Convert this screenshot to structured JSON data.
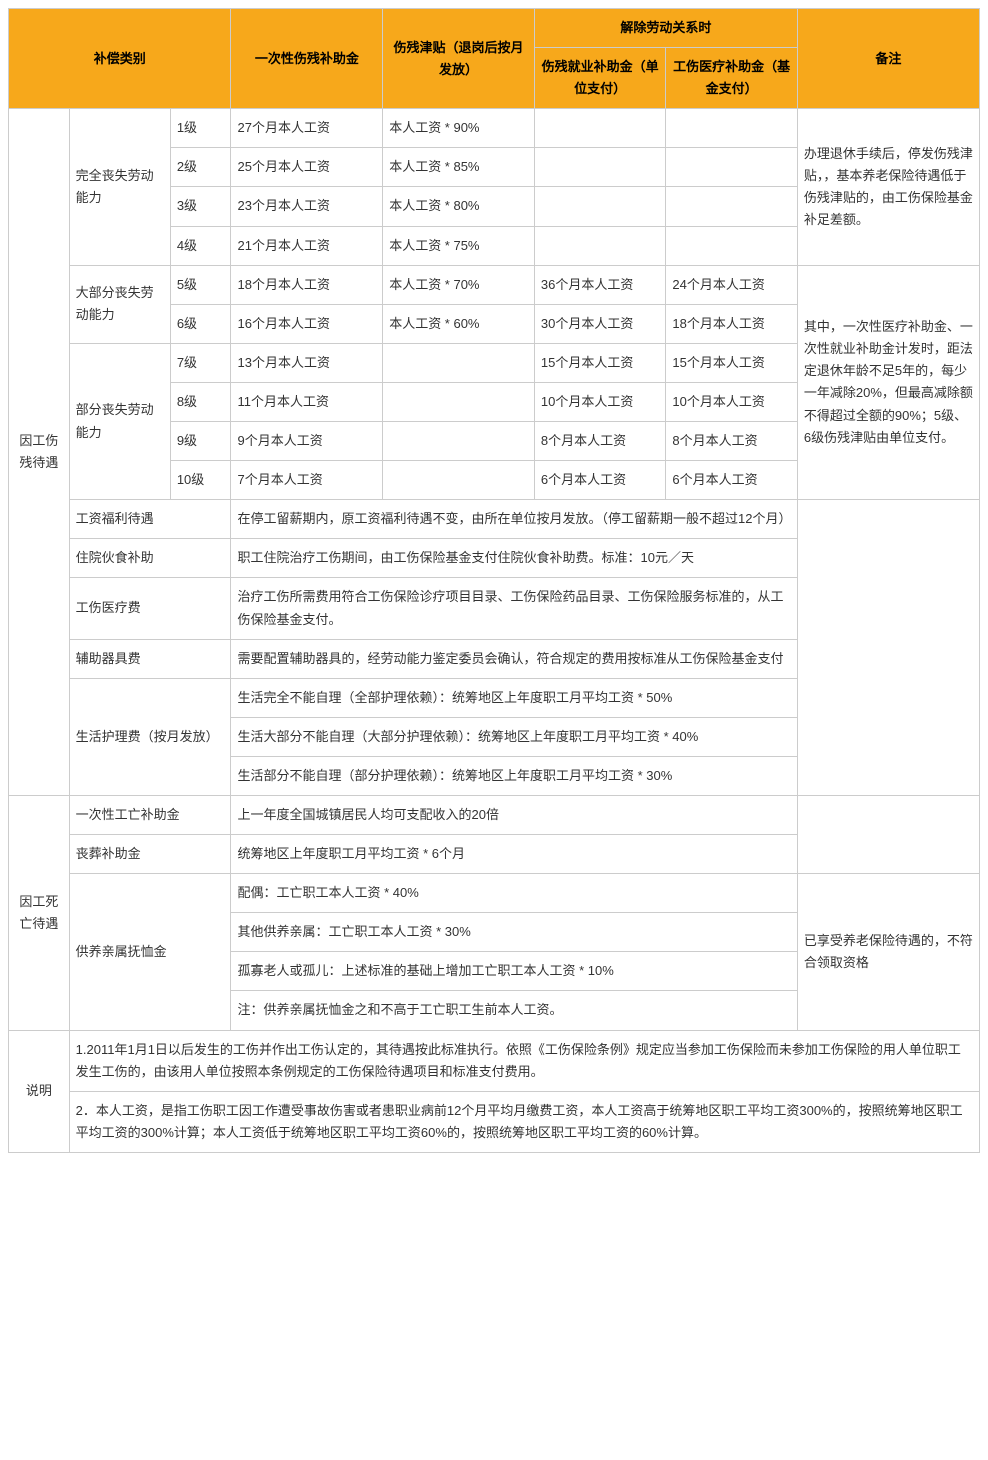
{
  "header": {
    "compType": "补偿类别",
    "lumpSum": "一次性伤残补助金",
    "allowance": "伤残津贴（退岗后按月发放）",
    "termination": "解除劳动关系时",
    "terminationEmploy": "伤残就业补助金（单位支付）",
    "terminationMedical": "工伤医疗补助金（基金支付）",
    "remark": "备注"
  },
  "cat1": "因工伤残待遇",
  "cat1a": "完全丧失劳动能力",
  "cat1b": "大部分丧失劳动能力",
  "cat1c": "部分丧失劳动能力",
  "l1": {
    "lv": "1级",
    "a": "27个月本人工资",
    "b": "本人工资 * 90%"
  },
  "l2": {
    "lv": "2级",
    "a": "25个月本人工资",
    "b": "本人工资 * 85%"
  },
  "l3": {
    "lv": "3级",
    "a": "23个月本人工资",
    "b": "本人工资 * 80%"
  },
  "l4": {
    "lv": "4级",
    "a": "21个月本人工资",
    "b": "本人工资 * 75%"
  },
  "l5": {
    "lv": "5级",
    "a": "18个月本人工资",
    "b": "本人工资 * 70%",
    "c": "36个月本人工资",
    "d": "24个月本人工资"
  },
  "l6": {
    "lv": "6级",
    "a": "16个月本人工资",
    "b": "本人工资 * 60%",
    "c": "30个月本人工资",
    "d": "18个月本人工资"
  },
  "l7": {
    "lv": "7级",
    "a": "13个月本人工资",
    "c": "15个月本人工资",
    "d": "15个月本人工资"
  },
  "l8": {
    "lv": "8级",
    "a": "11个月本人工资",
    "c": "10个月本人工资",
    "d": "10个月本人工资"
  },
  "l9": {
    "lv": "9级",
    "a": "9个月本人工资",
    "c": "8个月本人工资",
    "d": "8个月本人工资"
  },
  "l10": {
    "lv": "10级",
    "a": "7个月本人工资",
    "c": "6个月本人工资",
    "d": "6个月本人工资"
  },
  "remark14": "办理退休手续后，停发伤残津贴，，基本养老保险待遇低于伤残津贴的，由工伤保险基金补足差额。",
  "remark510": "其中，一次性医疗补助金、一次性就业补助金计发时，距法定退休年龄不足5年的，每少一年减除20%，但最高减除额不得超过全额的90%；5级、6级伤残津贴由单位支付。",
  "wageRow": {
    "t": "工资福利待遇",
    "v": "在停工留薪期内，原工资福利待遇不变，由所在单位按月发放。（停工留薪期一般不超过12个月）"
  },
  "hospRow": {
    "t": "住院伙食补助",
    "v": "职工住院治疗工伤期间，由工伤保险基金支付住院伙食补助费。标准：10元／天"
  },
  "medRow": {
    "t": "工伤医疗费",
    "v": "治疗工伤所需费用符合工伤保险诊疗项目目录、工伤保险药品目录、工伤保险服务标准的，从工伤保险基金支付。"
  },
  "aidRow": {
    "t": "辅助器具费",
    "v": "需要配置辅助器具的，经劳动能力鉴定委员会确认，符合规定的费用按标准从工伤保险基金支付"
  },
  "careRow": {
    "t": "生活护理费（按月发放）",
    "v1": "生活完全不能自理（全部护理依赖）：统筹地区上年度职工月平均工资 * 50%",
    "v2": "生活大部分不能自理（大部分护理依赖）：统筹地区上年度职工月平均工资 * 40%",
    "v3": "生活部分不能自理（部分护理依赖）：统筹地区上年度职工月平均工资 * 30%"
  },
  "cat2": "因工死亡待遇",
  "deathLump": {
    "t": "一次性工亡补助金",
    "v": "上一年度全国城镇居民人均可支配收入的20倍"
  },
  "funeral": {
    "t": "丧葬补助金",
    "v": "统筹地区上年度职工月平均工资 * 6个月"
  },
  "dependent": {
    "t": "供养亲属抚恤金",
    "v1": "配偶：工亡职工本人工资 * 40%",
    "v2": "其他供养亲属：工亡职工本人工资 * 30%",
    "v3": "孤寡老人或孤儿：上述标准的基础上增加工亡职工本人工资 * 10%",
    "v4": "注：供养亲属抚恤金之和不高于工亡职工生前本人工资。"
  },
  "depRemark": "已享受养老保险待遇的，不符合领取资格",
  "note": "说明",
  "note1": "1.2011年1月1日以后发生的工伤并作出工伤认定的，其待遇按此标准执行。依照《工伤保险条例》规定应当参加工伤保险而未参加工伤保险的用人单位职工发生工伤的，由该用人单位按照本条例规定的工伤保险待遇项目和标准支付费用。",
  "note2": "2．本人工资，是指工伤职工因工作遭受事故伤害或者患职业病前12个月平均月缴费工资，本人工资高于统筹地区职工平均工资300%的，按照统筹地区职工平均工资的300%计算；本人工资低于统筹地区职工平均工资60%的，按照统筹地区职工平均工资的60%计算。"
}
